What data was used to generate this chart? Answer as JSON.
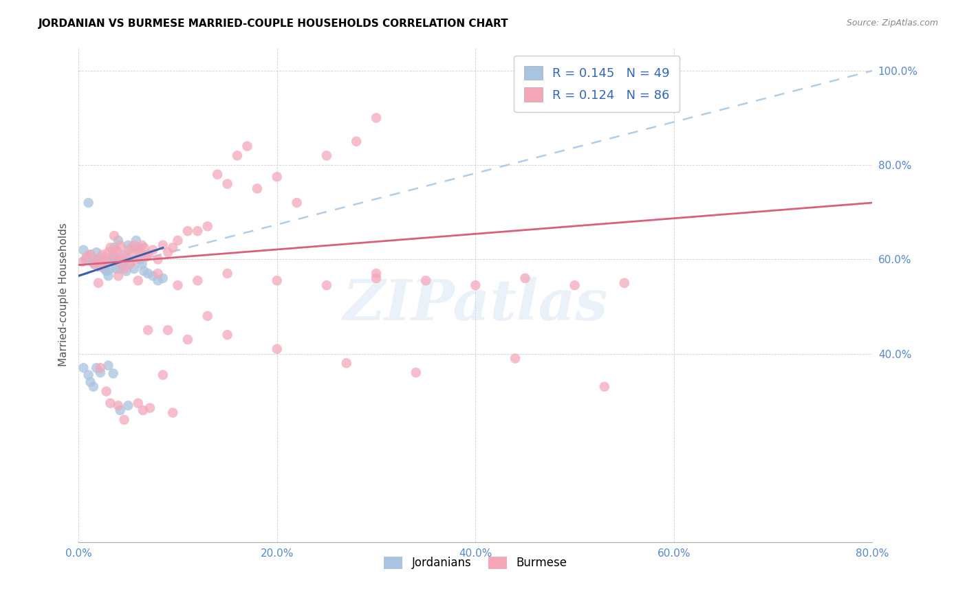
{
  "title": "JORDANIAN VS BURMESE MARRIED-COUPLE HOUSEHOLDS CORRELATION CHART",
  "source": "Source: ZipAtlas.com",
  "ylabel": "Married-couple Households",
  "xlim": [
    0.0,
    0.8
  ],
  "ylim": [
    0.0,
    1.05
  ],
  "xticks": [
    0.0,
    0.2,
    0.4,
    0.6,
    0.8
  ],
  "xtick_labels": [
    "0.0%",
    "20.0%",
    "40.0%",
    "60.0%",
    "80.0%"
  ],
  "yticks": [
    0.4,
    0.6,
    0.8,
    1.0
  ],
  "ytick_labels": [
    "40.0%",
    "60.0%",
    "80.0%",
    "100.0%"
  ],
  "jordan_color": "#a8c4e0",
  "burmese_color": "#f4a7b9",
  "jordan_line_color": "#3a5fa8",
  "burmese_line_color": "#d9607a",
  "dashed_line_color": "#a8c8e8",
  "R_jordan": 0.145,
  "N_jordan": 49,
  "R_burmese": 0.124,
  "N_burmese": 86,
  "watermark": "ZIPatlas",
  "jordan_x": [
    0.01,
    0.005,
    0.007,
    0.012,
    0.014,
    0.016,
    0.018,
    0.02,
    0.022,
    0.024,
    0.026,
    0.028,
    0.03,
    0.03,
    0.032,
    0.034,
    0.035,
    0.036,
    0.038,
    0.038,
    0.04,
    0.04,
    0.042,
    0.044,
    0.046,
    0.048,
    0.05,
    0.052,
    0.054,
    0.056,
    0.058,
    0.06,
    0.062,
    0.064,
    0.066,
    0.07,
    0.075,
    0.08,
    0.085,
    0.005,
    0.01,
    0.012,
    0.015,
    0.018,
    0.022,
    0.03,
    0.035,
    0.042,
    0.05
  ],
  "jordan_y": [
    0.72,
    0.62,
    0.6,
    0.61,
    0.595,
    0.59,
    0.615,
    0.6,
    0.605,
    0.59,
    0.58,
    0.575,
    0.565,
    0.595,
    0.58,
    0.6,
    0.605,
    0.625,
    0.6,
    0.58,
    0.64,
    0.6,
    0.58,
    0.59,
    0.61,
    0.575,
    0.63,
    0.595,
    0.625,
    0.58,
    0.64,
    0.625,
    0.6,
    0.59,
    0.575,
    0.57,
    0.565,
    0.555,
    0.56,
    0.37,
    0.355,
    0.34,
    0.33,
    0.37,
    0.36,
    0.375,
    0.358,
    0.28,
    0.29
  ],
  "burmese_x": [
    0.004,
    0.008,
    0.012,
    0.016,
    0.02,
    0.022,
    0.024,
    0.026,
    0.028,
    0.03,
    0.032,
    0.034,
    0.036,
    0.038,
    0.04,
    0.04,
    0.042,
    0.044,
    0.046,
    0.048,
    0.05,
    0.052,
    0.054,
    0.056,
    0.058,
    0.06,
    0.062,
    0.064,
    0.066,
    0.068,
    0.07,
    0.075,
    0.08,
    0.085,
    0.09,
    0.095,
    0.1,
    0.11,
    0.12,
    0.13,
    0.14,
    0.15,
    0.16,
    0.17,
    0.18,
    0.2,
    0.22,
    0.25,
    0.28,
    0.3,
    0.02,
    0.04,
    0.06,
    0.08,
    0.1,
    0.12,
    0.15,
    0.2,
    0.25,
    0.3,
    0.35,
    0.4,
    0.45,
    0.5,
    0.55,
    0.3,
    0.07,
    0.09,
    0.11,
    0.13,
    0.15,
    0.2,
    0.27,
    0.34,
    0.04,
    0.028,
    0.022,
    0.032,
    0.046,
    0.06,
    0.065,
    0.072,
    0.085,
    0.095,
    0.44,
    0.53
  ],
  "burmese_y": [
    0.595,
    0.605,
    0.61,
    0.59,
    0.6,
    0.585,
    0.61,
    0.59,
    0.6,
    0.615,
    0.625,
    0.61,
    0.65,
    0.62,
    0.595,
    0.615,
    0.63,
    0.6,
    0.58,
    0.605,
    0.62,
    0.59,
    0.615,
    0.63,
    0.6,
    0.62,
    0.615,
    0.63,
    0.625,
    0.605,
    0.61,
    0.62,
    0.6,
    0.63,
    0.615,
    0.625,
    0.64,
    0.66,
    0.66,
    0.67,
    0.78,
    0.76,
    0.82,
    0.84,
    0.75,
    0.775,
    0.72,
    0.82,
    0.85,
    0.56,
    0.55,
    0.565,
    0.555,
    0.57,
    0.545,
    0.555,
    0.57,
    0.555,
    0.545,
    0.57,
    0.555,
    0.545,
    0.56,
    0.545,
    0.55,
    0.9,
    0.45,
    0.45,
    0.43,
    0.48,
    0.44,
    0.41,
    0.38,
    0.36,
    0.29,
    0.32,
    0.37,
    0.295,
    0.26,
    0.295,
    0.28,
    0.285,
    0.355,
    0.275,
    0.39,
    0.33
  ],
  "jordan_line_x": [
    0.0,
    0.085
  ],
  "jordan_line_y_intercept": 0.565,
  "jordan_line_slope": 0.7,
  "burmese_line_x": [
    0.0,
    0.8
  ],
  "burmese_line_y_start": 0.588,
  "burmese_line_y_end": 0.72,
  "dash_line_x": [
    0.0,
    0.8
  ],
  "dash_line_y": [
    0.565,
    1.0
  ]
}
